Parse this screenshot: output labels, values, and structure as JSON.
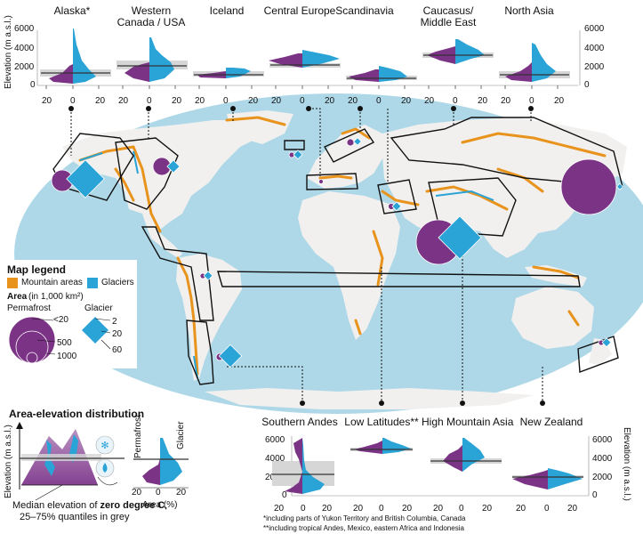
{
  "colors": {
    "ocean": "#aed8e8",
    "land": "#f1f0ee",
    "mountain": "#e8931c",
    "glacier": "#2aa3d6",
    "permafrost": "#7b3385",
    "quantile": "#d6d6d6"
  },
  "top_regions": [
    "Alaska*",
    "Western Canada / USA",
    "Iceland",
    "Central Europe",
    "Scandinavia",
    "Caucasus/ Middle East",
    "North Asia"
  ],
  "bottom_regions": [
    "Southern Andes",
    "Low Latitudes**",
    "High Mountain Asia",
    "New Zealand"
  ],
  "top_axis": {
    "ylabel": "Elevation (m a.s.l.)",
    "yticks": [
      "6000",
      "4000",
      "2000",
      "0"
    ],
    "xticks": [
      "20",
      "0",
      "20"
    ]
  },
  "bottom_axis": {
    "ylabel": "Elevation (m a.s.l.)",
    "yticks": [
      "6000",
      "4000",
      "2000",
      "0"
    ],
    "xticks": [
      "20",
      "0",
      "20"
    ]
  },
  "legend": {
    "title": "Map legend",
    "mountain_label": "Mountain areas",
    "glacier_label": "Glaciers",
    "area_label": "Area",
    "area_unit": " (in 1,000 km²)",
    "permafrost_label": "Permafrost",
    "glacier_size_label": "Glacier",
    "permafrost_sizes": [
      "<20",
      "500",
      "1000"
    ],
    "glacier_sizes": [
      "2",
      "20",
      "60"
    ]
  },
  "distribution_legend": {
    "title": "Area-elevation distribution",
    "ylabel": "Elevation (m a.s.l.)",
    "permafrost": "Permafrost",
    "glacier": "Glacier",
    "xlabel": "Area (%)",
    "xticks": [
      "20",
      "0",
      "20"
    ],
    "median_line1_pre": "Median elevation of ",
    "median_line1_bold": "zero degree C",
    "median_line1_post": ",",
    "median_line2": "25–75% quantiles in grey"
  },
  "footnotes": [
    "*including parts of Yukon Territory and British Columbia, Canada",
    "**including tropical Andes, Mexico, eastern Africa and Indonesia"
  ]
}
